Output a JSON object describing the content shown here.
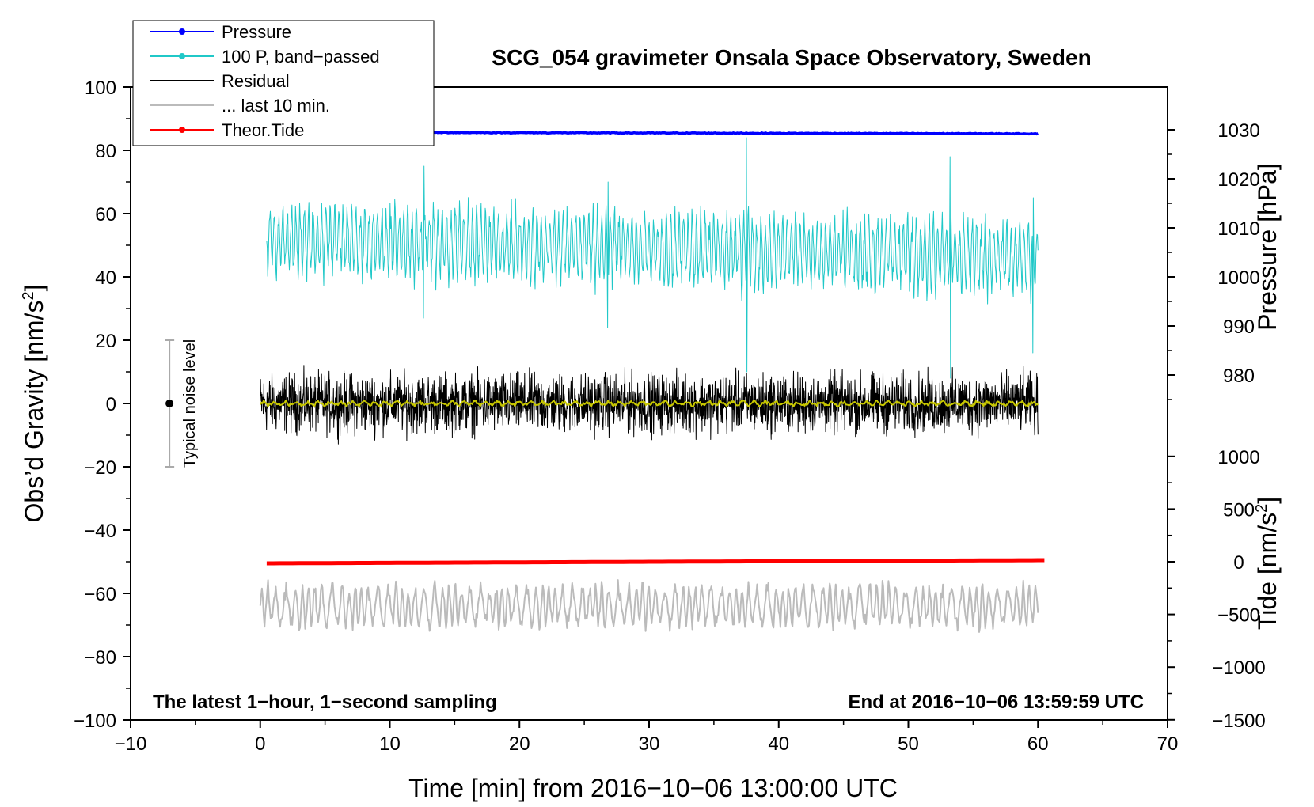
{
  "chart_data": {
    "type": "line",
    "title": "SCG_054 gravimeter Onsala Space Observatory, Sweden",
    "xlabel": "Time [min] from 2016−10−06 13:00:00 UTC",
    "ylabel_main": "Obs’d Gravity [nm/s",
    "ylabel_main_sup": "2",
    "ylabel_main_tail": "]",
    "ylabel_pressure": "Pressure [hPa]",
    "ylabel_tide": "Tide [nm/s",
    "ylabel_tide_sup": "2",
    "ylabel_tide_tail": "]",
    "xlim": [
      -10,
      70
    ],
    "ylim": [
      -100,
      100
    ],
    "x_ticks": [
      "−10",
      "0",
      "10",
      "20",
      "30",
      "40",
      "50",
      "60",
      "70"
    ],
    "x_tick_values": [
      -10,
      0,
      10,
      20,
      30,
      40,
      50,
      60,
      70
    ],
    "y_ticks": [
      "100",
      "80",
      "60",
      "40",
      "20",
      "0",
      "−20",
      "−40",
      "−60",
      "−80",
      "−100"
    ],
    "y_tick_values": [
      100,
      80,
      60,
      40,
      20,
      0,
      -20,
      -40,
      -60,
      -80,
      -100
    ],
    "pressure_axis": {
      "ticks": [
        "1030",
        "1020",
        "1010",
        "1000",
        "990",
        "980"
      ],
      "tick_values": [
        1030,
        1020,
        1010,
        1000,
        990,
        980
      ],
      "gravity_at_1000": 40,
      "gravity_per_hpa": 1.55
    },
    "tide_axis": {
      "ticks": [
        "1000",
        "500",
        "0",
        "−500",
        "−1000",
        "−1500"
      ],
      "tick_values": [
        1000,
        500,
        0,
        -500,
        -1000,
        -1500
      ],
      "gravity_at_0": -50,
      "gravity_per_unit": 0.0333
    },
    "legend": [
      {
        "label": "Pressure",
        "color": "#0000ff",
        "marker": true
      },
      {
        "label": "100 P, band−passed",
        "color": "#20c8c8",
        "marker": true
      },
      {
        "label": "Residual",
        "color": "#000000",
        "marker": false
      },
      {
        "label": "... last 10 min.",
        "color": "#bbbbbb",
        "marker": false
      },
      {
        "label": "Theor.Tide",
        "color": "#ff0000",
        "marker": true
      }
    ],
    "series": [
      {
        "name": "Pressure",
        "color": "#0000ff",
        "x_range": [
          0,
          60
        ],
        "level_hpa": 1029.5,
        "end_hpa": 1029.2
      },
      {
        "name": "100 P, band-passed",
        "color": "#20c8c8",
        "x_range": [
          0.5,
          60
        ],
        "baseline": 52,
        "amplitude": 13
      },
      {
        "name": "Residual",
        "color": "#000000",
        "x_range": [
          0,
          60
        ],
        "baseline": 0,
        "amplitude": 6
      },
      {
        "name": "Smoothed residual",
        "color": "#c8c800",
        "x_range": [
          0,
          60
        ],
        "baseline": 0,
        "amplitude": 1
      },
      {
        "name": "... last 10 min.",
        "color": "#bbbbbb",
        "x_range": [
          0,
          60
        ],
        "baseline": -64,
        "amplitude": 8
      },
      {
        "name": "Theor.Tide",
        "color": "#ff0000",
        "x_range": [
          0.5,
          60.5
        ],
        "start_tide": -15,
        "end_tide": 15
      }
    ],
    "noise_bar": {
      "x": -7,
      "center": 0,
      "low": -20,
      "high": 20,
      "label": "Typical noise level"
    },
    "annotations": {
      "left": "The latest 1−hour, 1−second sampling",
      "right": "End at 2016−10−06 13:59:59 UTC"
    }
  }
}
